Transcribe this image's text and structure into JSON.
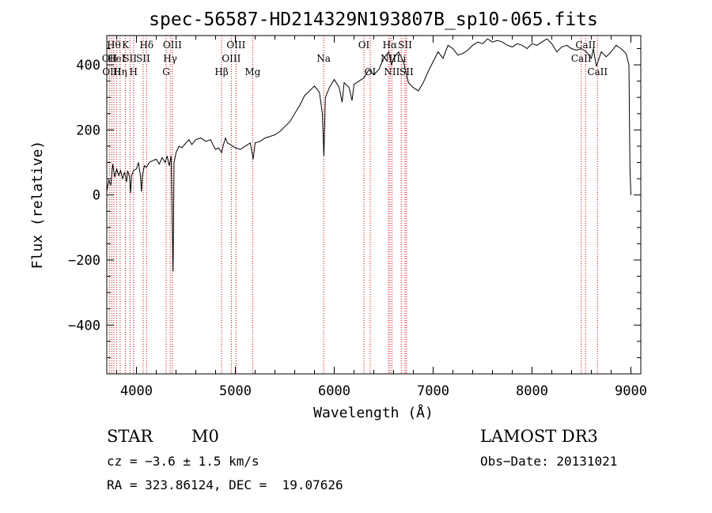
{
  "chart_data": {
    "type": "line",
    "title": "spec-56587-HD214329N193807B_sp10-065.fits",
    "xlabel": "Wavelength (Å)",
    "ylabel": "Flux (relative)",
    "xlim": [
      3700,
      9100
    ],
    "ylim": [
      -550,
      490
    ],
    "xticks": [
      4000,
      5000,
      6000,
      7000,
      8000,
      9000
    ],
    "yticks": [
      -400,
      -200,
      0,
      200,
      400
    ],
    "spectrum": [
      [
        3700,
        10
      ],
      [
        3720,
        45
      ],
      [
        3740,
        30
      ],
      [
        3760,
        95
      ],
      [
        3780,
        55
      ],
      [
        3800,
        80
      ],
      [
        3820,
        60
      ],
      [
        3840,
        75
      ],
      [
        3860,
        50
      ],
      [
        3880,
        70
      ],
      [
        3900,
        40
      ],
      [
        3910,
        75
      ],
      [
        3930,
        55
      ],
      [
        3940,
        5
      ],
      [
        3950,
        60
      ],
      [
        3970,
        75
      ],
      [
        4000,
        80
      ],
      [
        4020,
        100
      ],
      [
        4040,
        60
      ],
      [
        4050,
        10
      ],
      [
        4060,
        60
      ],
      [
        4080,
        90
      ],
      [
        4100,
        85
      ],
      [
        4130,
        100
      ],
      [
        4160,
        105
      ],
      [
        4200,
        110
      ],
      [
        4230,
        95
      ],
      [
        4260,
        115
      ],
      [
        4290,
        100
      ],
      [
        4310,
        120
      ],
      [
        4330,
        90
      ],
      [
        4350,
        120
      ],
      [
        4370,
        -235
      ],
      [
        4380,
        100
      ],
      [
        4400,
        130
      ],
      [
        4430,
        150
      ],
      [
        4460,
        145
      ],
      [
        4500,
        160
      ],
      [
        4530,
        170
      ],
      [
        4560,
        155
      ],
      [
        4600,
        170
      ],
      [
        4650,
        175
      ],
      [
        4700,
        165
      ],
      [
        4750,
        170
      ],
      [
        4780,
        150
      ],
      [
        4800,
        140
      ],
      [
        4830,
        145
      ],
      [
        4860,
        130
      ],
      [
        4880,
        155
      ],
      [
        4900,
        175
      ],
      [
        4920,
        160
      ],
      [
        4950,
        155
      ],
      [
        5000,
        145
      ],
      [
        5050,
        140
      ],
      [
        5100,
        150
      ],
      [
        5150,
        160
      ],
      [
        5180,
        110
      ],
      [
        5200,
        160
      ],
      [
        5250,
        165
      ],
      [
        5300,
        175
      ],
      [
        5350,
        180
      ],
      [
        5400,
        185
      ],
      [
        5450,
        195
      ],
      [
        5500,
        210
      ],
      [
        5550,
        225
      ],
      [
        5600,
        250
      ],
      [
        5650,
        275
      ],
      [
        5700,
        305
      ],
      [
        5750,
        320
      ],
      [
        5800,
        335
      ],
      [
        5850,
        315
      ],
      [
        5880,
        250
      ],
      [
        5895,
        120
      ],
      [
        5910,
        300
      ],
      [
        5950,
        330
      ],
      [
        6000,
        355
      ],
      [
        6050,
        330
      ],
      [
        6080,
        285
      ],
      [
        6100,
        345
      ],
      [
        6150,
        330
      ],
      [
        6180,
        290
      ],
      [
        6200,
        340
      ],
      [
        6250,
        350
      ],
      [
        6300,
        360
      ],
      [
        6350,
        385
      ],
      [
        6400,
        370
      ],
      [
        6450,
        385
      ],
      [
        6500,
        420
      ],
      [
        6550,
        440
      ],
      [
        6580,
        400
      ],
      [
        6600,
        420
      ],
      [
        6650,
        440
      ],
      [
        6700,
        410
      ],
      [
        6750,
        345
      ],
      [
        6800,
        330
      ],
      [
        6850,
        320
      ],
      [
        6900,
        345
      ],
      [
        6950,
        380
      ],
      [
        7000,
        410
      ],
      [
        7050,
        440
      ],
      [
        7100,
        420
      ],
      [
        7150,
        460
      ],
      [
        7200,
        450
      ],
      [
        7250,
        430
      ],
      [
        7300,
        435
      ],
      [
        7350,
        445
      ],
      [
        7400,
        460
      ],
      [
        7450,
        470
      ],
      [
        7500,
        465
      ],
      [
        7550,
        480
      ],
      [
        7600,
        470
      ],
      [
        7650,
        475
      ],
      [
        7700,
        470
      ],
      [
        7750,
        460
      ],
      [
        7800,
        455
      ],
      [
        7850,
        465
      ],
      [
        7900,
        460
      ],
      [
        7950,
        450
      ],
      [
        8000,
        465
      ],
      [
        8050,
        460
      ],
      [
        8100,
        470
      ],
      [
        8150,
        480
      ],
      [
        8200,
        465
      ],
      [
        8250,
        440
      ],
      [
        8300,
        455
      ],
      [
        8350,
        460
      ],
      [
        8400,
        450
      ],
      [
        8450,
        445
      ],
      [
        8500,
        450
      ],
      [
        8550,
        440
      ],
      [
        8600,
        420
      ],
      [
        8620,
        450
      ],
      [
        8650,
        395
      ],
      [
        8700,
        440
      ],
      [
        8750,
        425
      ],
      [
        8800,
        440
      ],
      [
        8850,
        460
      ],
      [
        8900,
        450
      ],
      [
        8950,
        435
      ],
      [
        8980,
        400
      ],
      [
        8990,
        80
      ],
      [
        9000,
        0
      ]
    ],
    "lines": [
      {
        "wavelength": 3727,
        "label": "OII",
        "row": 1
      },
      {
        "wavelength": 3750,
        "label": "OIII",
        "row": 2
      },
      {
        "wavelength": 3771,
        "label": "Hθ",
        "row": 0
      },
      {
        "wavelength": 3798,
        "label": "HeI",
        "row": 1
      },
      {
        "wavelength": 3835,
        "label": "Hη",
        "row": 2
      },
      {
        "wavelength": 3889,
        "label": "K",
        "row": 0
      },
      {
        "wavelength": 3934,
        "label": "SII",
        "row": 1
      },
      {
        "wavelength": 3970,
        "label": "H",
        "row": 2
      },
      {
        "wavelength": 4102,
        "label": "Hδ",
        "row": 0
      },
      {
        "wavelength": 4068,
        "label": "SII",
        "row": 1
      },
      {
        "wavelength": 4300,
        "label": "G",
        "row": 2
      },
      {
        "wavelength": 4341,
        "label": "Hγ",
        "row": 1
      },
      {
        "wavelength": 4363,
        "label": "OIII",
        "row": 0
      },
      {
        "wavelength": 4861,
        "label": "Hβ",
        "row": 2
      },
      {
        "wavelength": 4959,
        "label": "OIII",
        "row": 1
      },
      {
        "wavelength": 5007,
        "label": "OIII",
        "row": 0
      },
      {
        "wavelength": 5175,
        "label": "Mg",
        "row": 2
      },
      {
        "wavelength": 5893,
        "label": "Na",
        "row": 1
      },
      {
        "wavelength": 6300,
        "label": "OI",
        "row": 0
      },
      {
        "wavelength": 6364,
        "label": "OI",
        "row": 2
      },
      {
        "wavelength": 6548,
        "label": "NII",
        "row": 1
      },
      {
        "wavelength": 6563,
        "label": "Hα",
        "row": 0
      },
      {
        "wavelength": 6583,
        "label": "NII",
        "row": 2
      },
      {
        "wavelength": 6678,
        "label": "Li",
        "row": 1
      },
      {
        "wavelength": 6716,
        "label": "SII",
        "row": 0
      },
      {
        "wavelength": 6731,
        "label": "SII",
        "row": 2
      },
      {
        "wavelength": 8498,
        "label": "CaII",
        "row": 1
      },
      {
        "wavelength": 8542,
        "label": "CaII",
        "row": 0
      },
      {
        "wavelength": 8662,
        "label": "CaII",
        "row": 2
      }
    ],
    "grid": false,
    "line_color": "#000000",
    "marker_color": "#cc0000"
  },
  "info": {
    "class": "STAR",
    "subclass": "M0",
    "survey": "LAMOST DR3",
    "cz": "cz = −3.6 ± 1.5 km/s",
    "obsdate": "Obs−Date: 20131021",
    "radec": "RA = 323.86124, DEC =  19.07626"
  }
}
